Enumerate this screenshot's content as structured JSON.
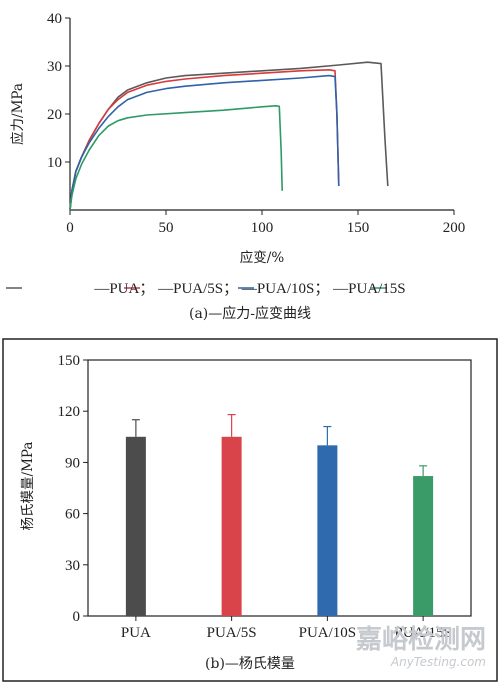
{
  "chart_data": [
    {
      "type": "line",
      "caption": "(a)—应力-应变曲线",
      "xlabel": "应变/%",
      "ylabel": "应力/MPa",
      "xlim": [
        0,
        200
      ],
      "ylim": [
        0,
        40
      ],
      "x_ticks": [
        "0",
        "50",
        "100",
        "150",
        "200"
      ],
      "y_ticks": [
        "10",
        "20",
        "30",
        "40"
      ],
      "grid": false,
      "legend_position": "bottom",
      "legend_text": "—PUA；  —PUA/5S；  —PUA/10S；  —PUA/15S",
      "series": [
        {
          "name": "PUA",
          "color": "#5a5a5a",
          "x": [
            0,
            1,
            3,
            6,
            10,
            15,
            20,
            25,
            30,
            40,
            50,
            60,
            80,
            100,
            120,
            140,
            155,
            162,
            164,
            165.5
          ],
          "y": [
            0,
            4,
            8,
            11,
            14.5,
            18,
            21,
            23.5,
            25,
            26.5,
            27.5,
            28,
            28.5,
            29,
            29.5,
            30.2,
            30.8,
            30.5,
            15,
            5
          ]
        },
        {
          "name": "PUA/5S",
          "color": "#d9393b",
          "x": [
            0,
            1,
            3,
            6,
            10,
            15,
            20,
            25,
            30,
            40,
            50,
            60,
            80,
            100,
            120,
            135,
            138,
            139,
            140
          ],
          "y": [
            0,
            4,
            8,
            11,
            14.5,
            18,
            21,
            23,
            24.5,
            26,
            26.8,
            27.3,
            28,
            28.5,
            29,
            29.2,
            29,
            20,
            5
          ]
        },
        {
          "name": "PUA/10S",
          "color": "#2f62a8",
          "x": [
            0,
            1,
            3,
            6,
            10,
            15,
            20,
            25,
            30,
            40,
            50,
            60,
            80,
            100,
            120,
            135,
            138,
            139,
            140
          ],
          "y": [
            0,
            4,
            8,
            11,
            14,
            17,
            19.5,
            21.5,
            23,
            24.5,
            25.3,
            25.8,
            26.5,
            27,
            27.5,
            28,
            27.8,
            20,
            5
          ]
        },
        {
          "name": "PUA/15S",
          "color": "#2f9a63",
          "x": [
            0,
            1,
            3,
            6,
            10,
            15,
            20,
            25,
            30,
            40,
            60,
            80,
            100,
            107,
            109,
            110,
            110.5
          ],
          "y": [
            0,
            3,
            6.5,
            9.5,
            12.5,
            15.5,
            17.5,
            18.6,
            19.2,
            19.8,
            20.3,
            20.8,
            21.5,
            21.7,
            21.6,
            12,
            4
          ]
        }
      ]
    },
    {
      "type": "bar",
      "caption": "(b)—杨氏模量",
      "ylabel": "杨氏模量/MPa",
      "ylim": [
        0,
        150
      ],
      "y_ticks": [
        "0",
        "30",
        "60",
        "90",
        "120",
        "150"
      ],
      "grid": false,
      "categories": [
        "PUA",
        "PUA/5S",
        "PUA/10S",
        "PUA/15S"
      ],
      "values": [
        105,
        105,
        100,
        82
      ],
      "errors": [
        10,
        13,
        11,
        6
      ],
      "colors": [
        "#4c4c4c",
        "#d9434a",
        "#2e6aad",
        "#3a9b68"
      ]
    }
  ],
  "watermark": {
    "line1": "嘉峪检测网",
    "line2": "AnyTesting.com"
  }
}
